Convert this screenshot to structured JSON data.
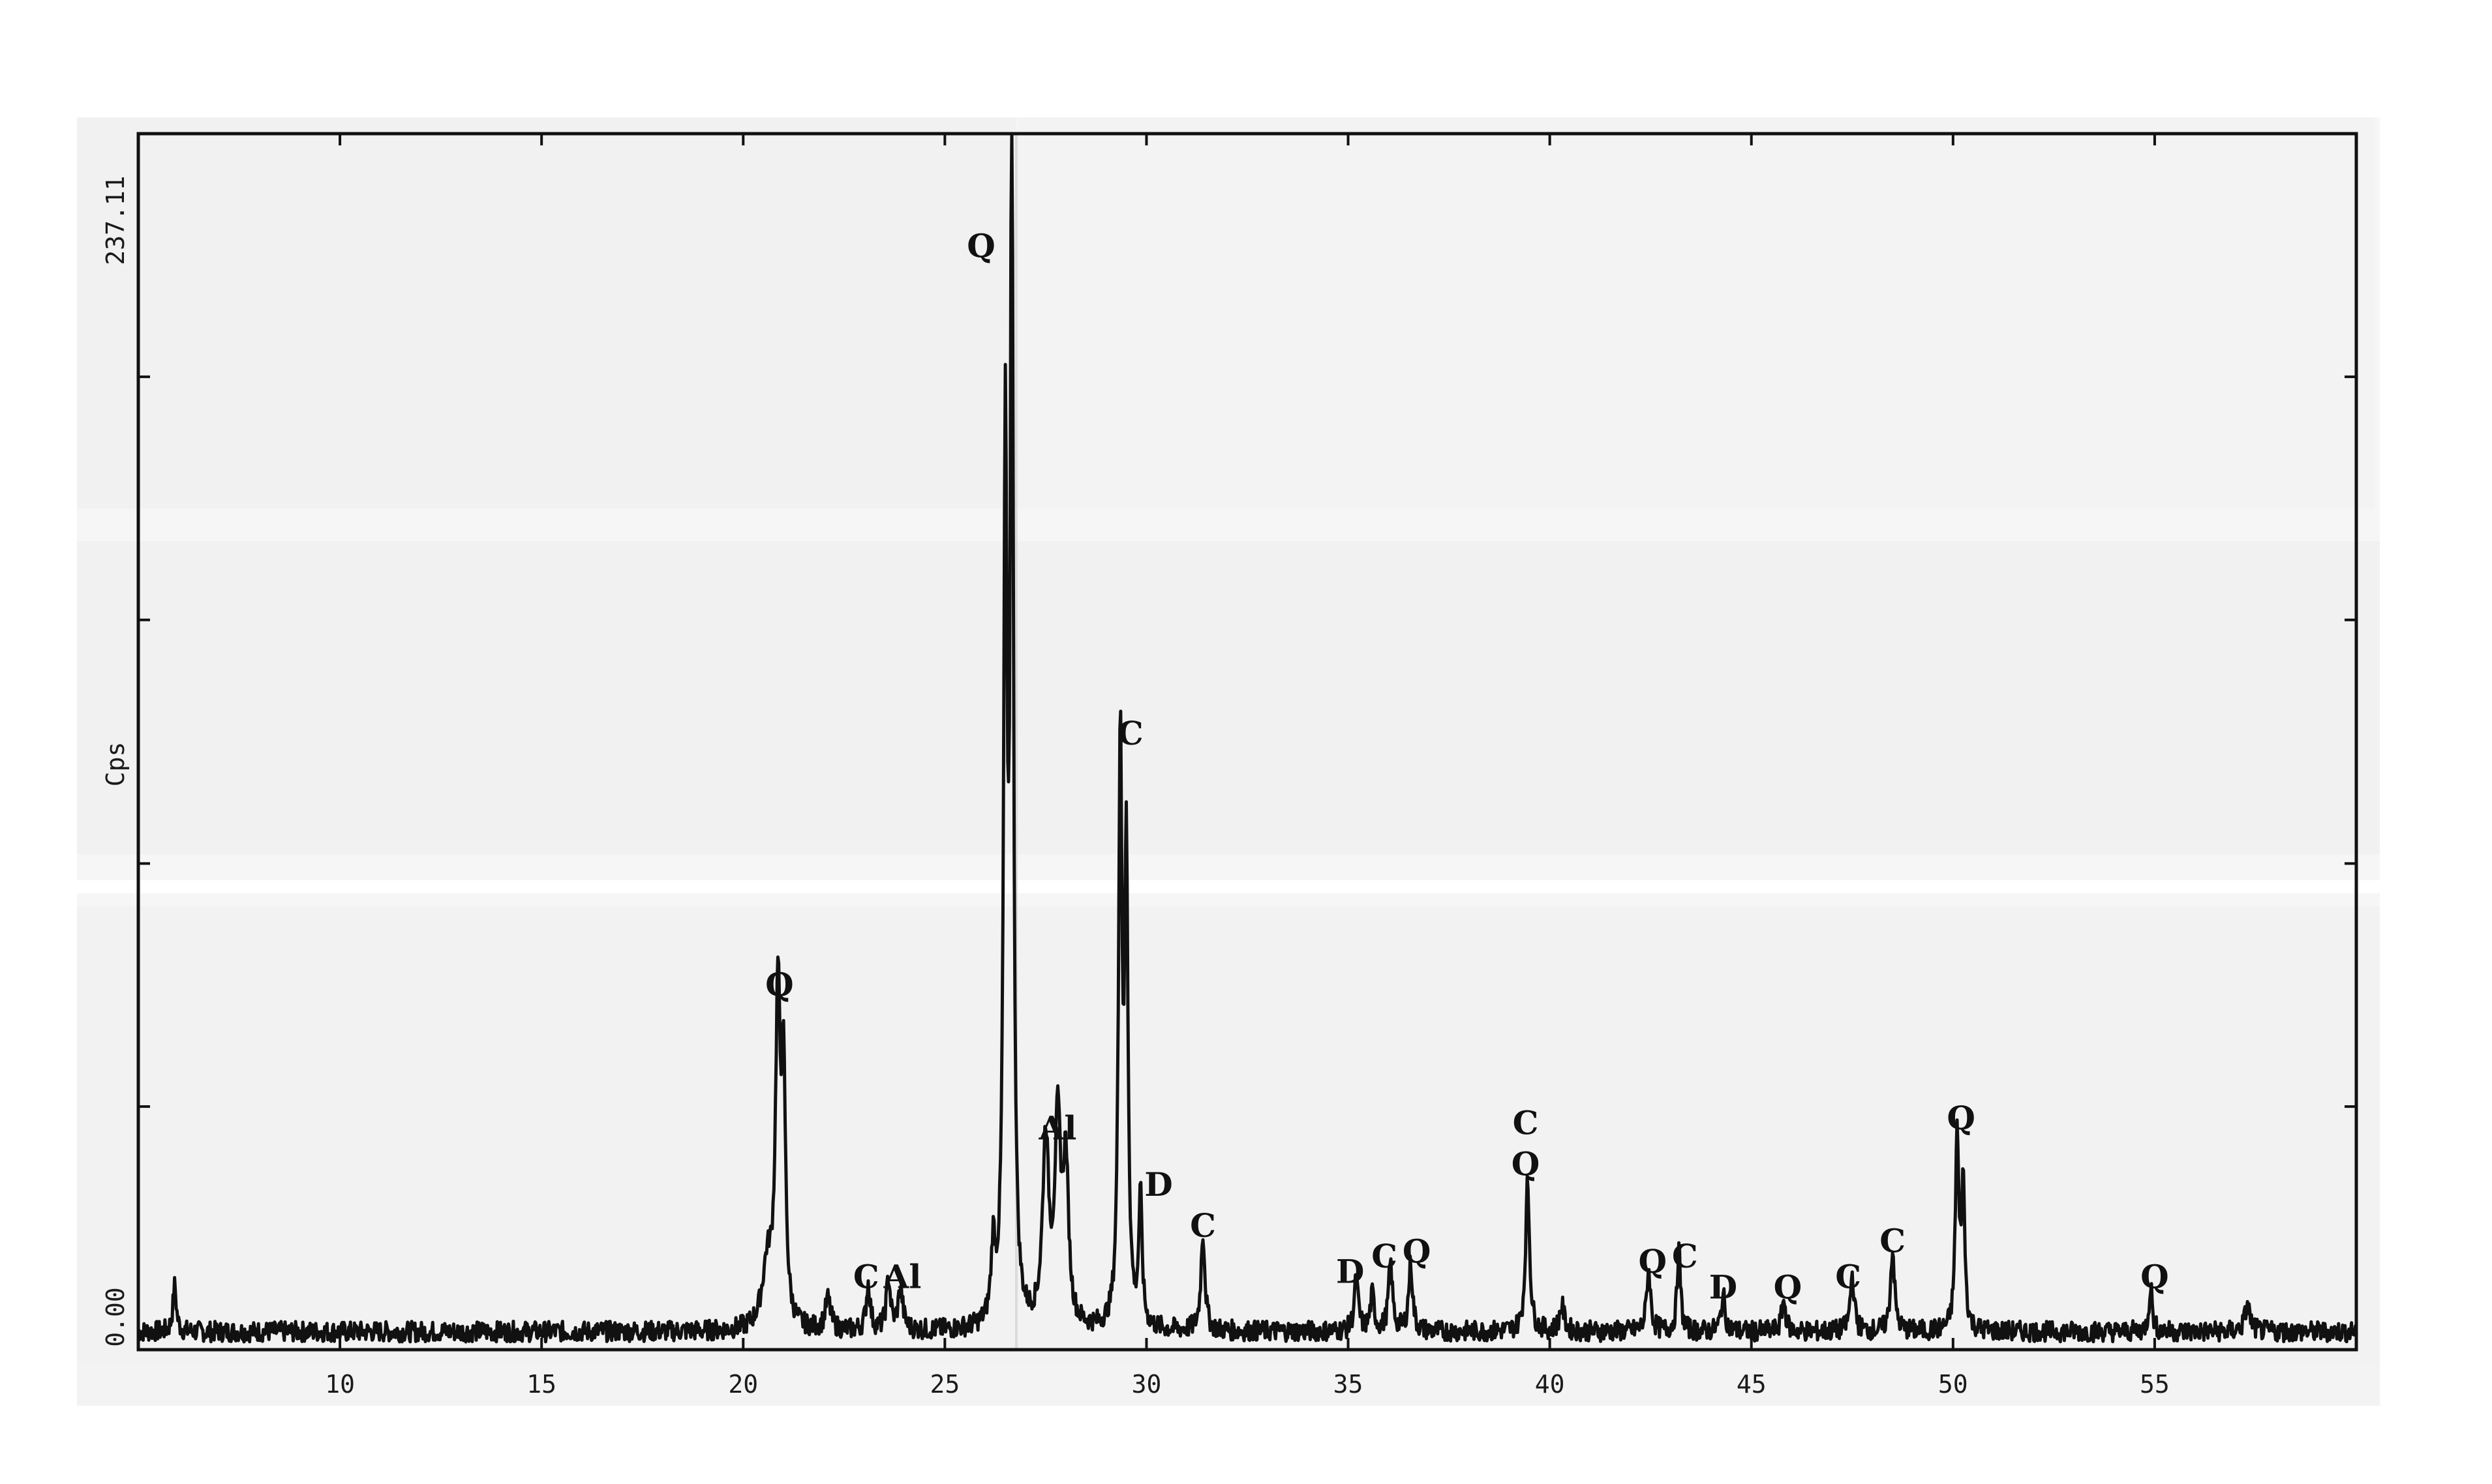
{
  "chart_data": {
    "type": "line",
    "title": "",
    "xlabel": "",
    "ylabel": "Cps",
    "y_max_label": "237.11",
    "y_min_label": "0.00",
    "xlim": [
      5,
      60
    ],
    "ylim": [
      0,
      237.11
    ],
    "x_ticks": [
      10,
      15,
      20,
      25,
      30,
      35,
      40,
      45,
      50,
      55
    ],
    "x_tick_labels": [
      "10",
      "15",
      "20",
      "25",
      "30",
      "35",
      "40",
      "45",
      "50",
      "55"
    ],
    "y_ticks": [
      0,
      47.4,
      94.8,
      142.3,
      189.7,
      237.11
    ],
    "grid": false,
    "line_color": "#111111",
    "noise_level": 4,
    "peaks": [
      {
        "x": 5.9,
        "y": 9,
        "w": 0.05
      },
      {
        "x": 20.6,
        "y": 12,
        "w": 0.15
      },
      {
        "x": 20.86,
        "y": 63,
        "w": 0.07
      },
      {
        "x": 21.0,
        "y": 45,
        "w": 0.06
      },
      {
        "x": 22.1,
        "y": 6,
        "w": 0.08
      },
      {
        "x": 23.1,
        "y": 9,
        "w": 0.06
      },
      {
        "x": 23.6,
        "y": 10,
        "w": 0.06
      },
      {
        "x": 23.9,
        "y": 8,
        "w": 0.07
      },
      {
        "x": 26.2,
        "y": 14,
        "w": 0.06
      },
      {
        "x": 26.5,
        "y": 170,
        "w": 0.05
      },
      {
        "x": 26.66,
        "y": 235,
        "w": 0.045
      },
      {
        "x": 27.5,
        "y": 36,
        "w": 0.09
      },
      {
        "x": 27.8,
        "y": 38,
        "w": 0.09
      },
      {
        "x": 28.0,
        "y": 30,
        "w": 0.08
      },
      {
        "x": 29.35,
        "y": 115,
        "w": 0.05
      },
      {
        "x": 29.5,
        "y": 90,
        "w": 0.05
      },
      {
        "x": 29.85,
        "y": 25,
        "w": 0.05
      },
      {
        "x": 31.4,
        "y": 19,
        "w": 0.06
      },
      {
        "x": 35.2,
        "y": 10,
        "w": 0.06
      },
      {
        "x": 35.6,
        "y": 7,
        "w": 0.06
      },
      {
        "x": 36.05,
        "y": 13,
        "w": 0.06
      },
      {
        "x": 36.55,
        "y": 13,
        "w": 0.06
      },
      {
        "x": 39.45,
        "y": 29,
        "w": 0.06
      },
      {
        "x": 40.3,
        "y": 5,
        "w": 0.07
      },
      {
        "x": 42.45,
        "y": 12,
        "w": 0.06
      },
      {
        "x": 43.2,
        "y": 16,
        "w": 0.05
      },
      {
        "x": 44.3,
        "y": 7,
        "w": 0.06
      },
      {
        "x": 45.8,
        "y": 6,
        "w": 0.06
      },
      {
        "x": 47.5,
        "y": 11,
        "w": 0.06
      },
      {
        "x": 48.5,
        "y": 16,
        "w": 0.06
      },
      {
        "x": 50.1,
        "y": 38,
        "w": 0.05
      },
      {
        "x": 50.25,
        "y": 28,
        "w": 0.05
      },
      {
        "x": 54.9,
        "y": 9,
        "w": 0.05
      },
      {
        "x": 57.3,
        "y": 5,
        "w": 0.08
      }
    ],
    "annotations": [
      {
        "label": "Q",
        "x": 20.9,
        "y": 69
      },
      {
        "label": "C",
        "x": 23.05,
        "y": 12
      },
      {
        "label": "Al",
        "x": 23.95,
        "y": 12
      },
      {
        "label": "Q",
        "x": 25.9,
        "y": 213
      },
      {
        "label": "Al",
        "x": 27.8,
        "y": 41
      },
      {
        "label": "C",
        "x": 29.6,
        "y": 118
      },
      {
        "label": "D",
        "x": 30.3,
        "y": 30
      },
      {
        "label": "C",
        "x": 31.4,
        "y": 22
      },
      {
        "label": "D",
        "x": 35.05,
        "y": 13
      },
      {
        "label": "C",
        "x": 35.9,
        "y": 16
      },
      {
        "label": "Q",
        "x": 36.7,
        "y": 17
      },
      {
        "label": "C",
        "x": 39.4,
        "y": 42
      },
      {
        "label": "Q",
        "x": 39.4,
        "y": 34
      },
      {
        "label": "Q",
        "x": 42.55,
        "y": 15
      },
      {
        "label": "C",
        "x": 43.35,
        "y": 16
      },
      {
        "label": "D",
        "x": 44.3,
        "y": 10
      },
      {
        "label": "Q",
        "x": 45.9,
        "y": 10
      },
      {
        "label": "C",
        "x": 47.4,
        "y": 12
      },
      {
        "label": "C",
        "x": 48.5,
        "y": 19
      },
      {
        "label": "Q",
        "x": 50.2,
        "y": 43
      },
      {
        "label": "Q",
        "x": 55.0,
        "y": 12
      }
    ]
  }
}
